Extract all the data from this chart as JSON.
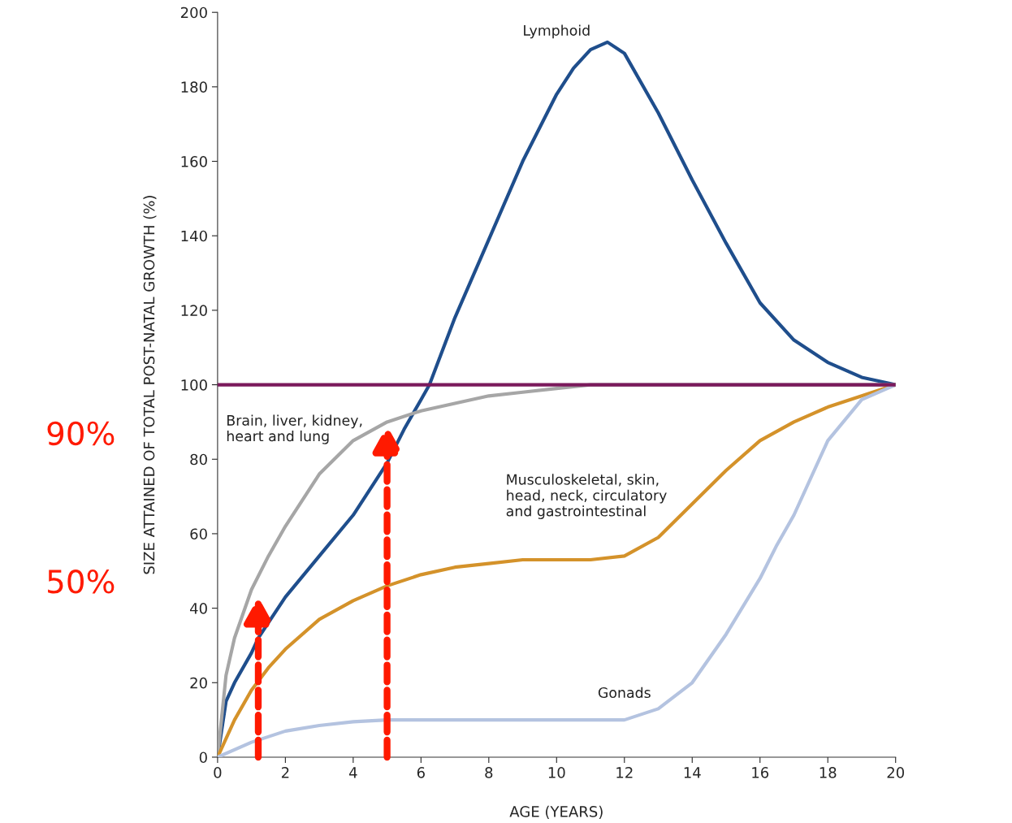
{
  "chart_data": {
    "type": "line",
    "xlabel": "AGE (YEARS)",
    "ylabel": "SIZE ATTAINED OF TOTAL POST-NATAL GROWTH (%)",
    "xlim": [
      0,
      20
    ],
    "ylim": [
      0,
      200
    ],
    "xticks": [
      0,
      2,
      4,
      6,
      8,
      10,
      12,
      14,
      16,
      18,
      20
    ],
    "yticks": [
      0,
      20,
      40,
      60,
      80,
      100,
      120,
      140,
      160,
      180,
      200
    ],
    "grid": false,
    "legend": false,
    "marker": "none",
    "line_style": "solid",
    "series": [
      {
        "name": "Lymphoid",
        "color": "#1f4e8c",
        "x": [
          0,
          0.25,
          0.5,
          1,
          1.2,
          2,
          3,
          4,
          5,
          5.5,
          6,
          6.25,
          7,
          8,
          9,
          10,
          10.5,
          11,
          11.5,
          12,
          13,
          14,
          15,
          16,
          17,
          18,
          19,
          20
        ],
        "values": [
          0,
          15,
          20,
          28,
          32,
          43,
          54,
          65,
          79,
          88,
          96,
          100,
          118,
          139,
          160,
          178,
          185,
          190,
          192,
          189,
          173,
          155,
          138,
          122,
          112,
          106,
          102,
          100
        ]
      },
      {
        "name": "Brain, liver, kidney,\nheart and lung",
        "color": "#a6a6a6",
        "x": [
          0,
          0.25,
          0.5,
          1,
          1.5,
          2,
          3,
          4,
          5,
          6,
          7,
          8,
          9,
          10,
          11,
          20
        ],
        "values": [
          0,
          22,
          32,
          45,
          54,
          62,
          76,
          85,
          90,
          93,
          95,
          97,
          98,
          99,
          100,
          100
        ]
      },
      {
        "name": "Musculoskeletal, skin,\nhead, neck, circulatory\nand gastrointestinal",
        "color": "#d4922a",
        "x": [
          0,
          0.5,
          1,
          1.5,
          2,
          3,
          4,
          5,
          6,
          7,
          8,
          9,
          10,
          11,
          12,
          13,
          14,
          15,
          16,
          17,
          18,
          19,
          20
        ],
        "values": [
          0,
          10,
          18,
          24,
          29,
          37,
          42,
          46,
          49,
          51,
          52,
          53,
          53,
          53,
          54,
          59,
          68,
          77,
          85,
          90,
          94,
          97,
          100
        ]
      },
      {
        "name": "Gonads",
        "color": "#b4c3e0",
        "x": [
          0,
          1,
          2,
          3,
          4,
          5,
          8,
          10,
          12,
          13,
          14,
          15,
          16,
          16.5,
          17,
          18,
          19,
          20
        ],
        "values": [
          0,
          4,
          7,
          8.5,
          9.5,
          10,
          10,
          10,
          10,
          13,
          20,
          33,
          48,
          57,
          65,
          85,
          96,
          100
        ]
      }
    ],
    "ref_lines": [
      {
        "axis": "y",
        "value": 100,
        "color": "#7b1a5c",
        "line_style": "solid"
      }
    ],
    "annotations": [
      "50%",
      "90%"
    ]
  }
}
